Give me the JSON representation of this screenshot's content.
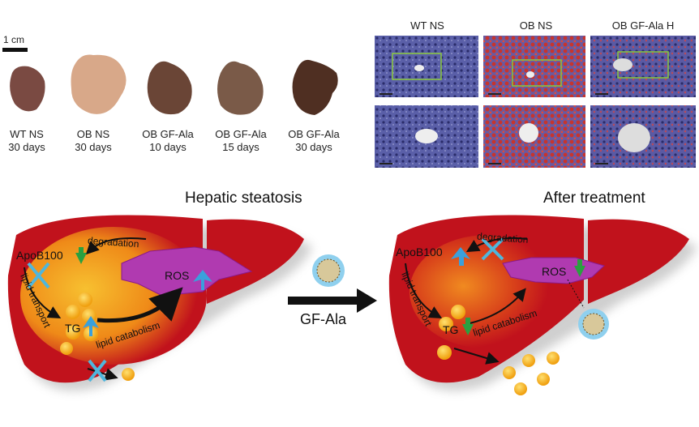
{
  "scale_bar": "1 cm",
  "livers": [
    {
      "line1": "WT NS",
      "line2": "30 days",
      "color": "#7a4a42"
    },
    {
      "line1": "OB NS",
      "line2": "30 days",
      "color": "#d8a889"
    },
    {
      "line1": "OB GF-Ala",
      "line2": "10 days",
      "color": "#6a4536"
    },
    {
      "line1": "OB GF-Ala",
      "line2": "15 days",
      "color": "#7a5a48"
    },
    {
      "line1": "OB GF-Ala",
      "line2": "30 days",
      "color": "#4f2f22"
    }
  ],
  "histology": {
    "titles": [
      "WT NS",
      "OB NS",
      "OB GF-Ala H"
    ]
  },
  "diagram": {
    "left_title": "Hepatic steatosis",
    "right_title": "After treatment",
    "arrow_label": "GF-Ala",
    "left": {
      "apob": "ApoB100",
      "degradation": "degradation",
      "ros": "ROS",
      "tg": "TG",
      "lipid_transport": "lipid transport",
      "lipid_catabolism": "lipid catabolism"
    },
    "right": {
      "apob": "ApoB100",
      "degradation": "degradation",
      "ros": "ROS",
      "tg": "TG",
      "lipid_transport": "lipid transport",
      "lipid_catabolism": "lipid catabolism"
    },
    "colors": {
      "liver": "#c1121c",
      "core": "#f5a020",
      "ros": "#b03ab0",
      "up_arrow": "#3aa0dc",
      "down_arrow": "#2aa040",
      "block": "#4fb6dc"
    }
  }
}
